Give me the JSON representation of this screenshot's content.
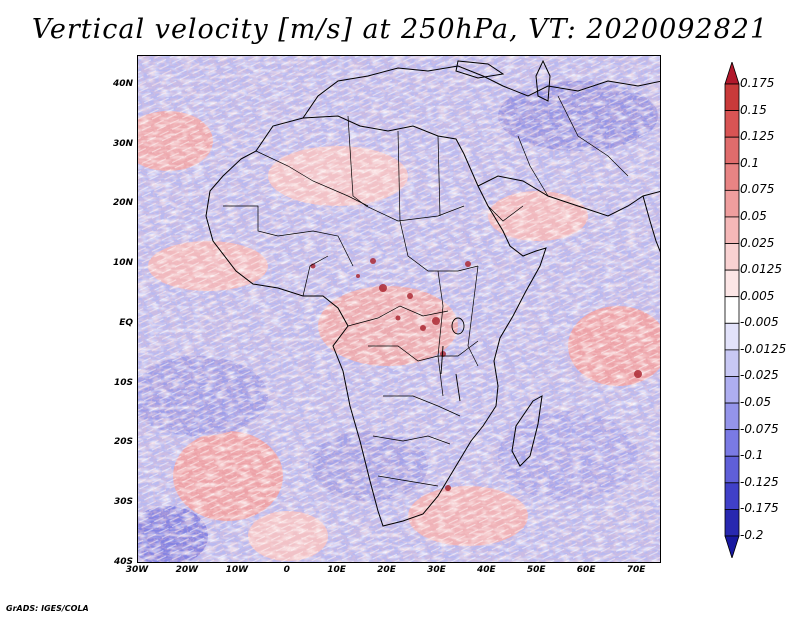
{
  "title": "Vertical velocity [m/s] at 250hPa, VT: 2020092821",
  "credit": "GrADS: IGES/COLA",
  "map": {
    "projection": "lat-lon",
    "lon_range": [
      -30,
      75
    ],
    "lat_range": [
      -40,
      45
    ],
    "lat_labels": [
      {
        "lat": 40,
        "text": "40N"
      },
      {
        "lat": 30,
        "text": "30N"
      },
      {
        "lat": 20,
        "text": "20N"
      },
      {
        "lat": 10,
        "text": "10N"
      },
      {
        "lat": 0,
        "text": "EQ"
      },
      {
        "lat": -10,
        "text": "10S"
      },
      {
        "lat": -20,
        "text": "20S"
      },
      {
        "lat": -30,
        "text": "30S"
      },
      {
        "lat": -40,
        "text": "40S"
      }
    ],
    "lon_labels": [
      {
        "lon": -30,
        "text": "30W"
      },
      {
        "lon": -20,
        "text": "20W"
      },
      {
        "lon": -10,
        "text": "10W"
      },
      {
        "lon": 0,
        "text": "0"
      },
      {
        "lon": 10,
        "text": "10E"
      },
      {
        "lon": 20,
        "text": "20E"
      },
      {
        "lon": 30,
        "text": "30E"
      },
      {
        "lon": 40,
        "text": "40E"
      },
      {
        "lon": 50,
        "text": "50E"
      },
      {
        "lon": 60,
        "text": "60E"
      },
      {
        "lon": 70,
        "text": "70E"
      }
    ],
    "coastline_color": "#000000"
  },
  "colorbar": {
    "levels": [
      "0.175",
      "0.15",
      "0.125",
      "0.1",
      "0.075",
      "0.05",
      "0.025",
      "0.0125",
      "0.005",
      "-0.005",
      "-0.0125",
      "-0.025",
      "-0.05",
      "-0.075",
      "-0.1",
      "-0.125",
      "-0.175",
      "-0.2"
    ],
    "colors": [
      "#b2182b",
      "#c93a3a",
      "#d85454",
      "#e06c6c",
      "#e88484",
      "#ef9e9e",
      "#f5b8b8",
      "#f9d2d2",
      "#fce6e6",
      "#ffffff",
      "#e2e2fa",
      "#c8c8f4",
      "#aeaef0",
      "#9494ea",
      "#7a7ae4",
      "#5f5fd8",
      "#4040c8",
      "#2828b0",
      "#1818a0"
    ]
  }
}
